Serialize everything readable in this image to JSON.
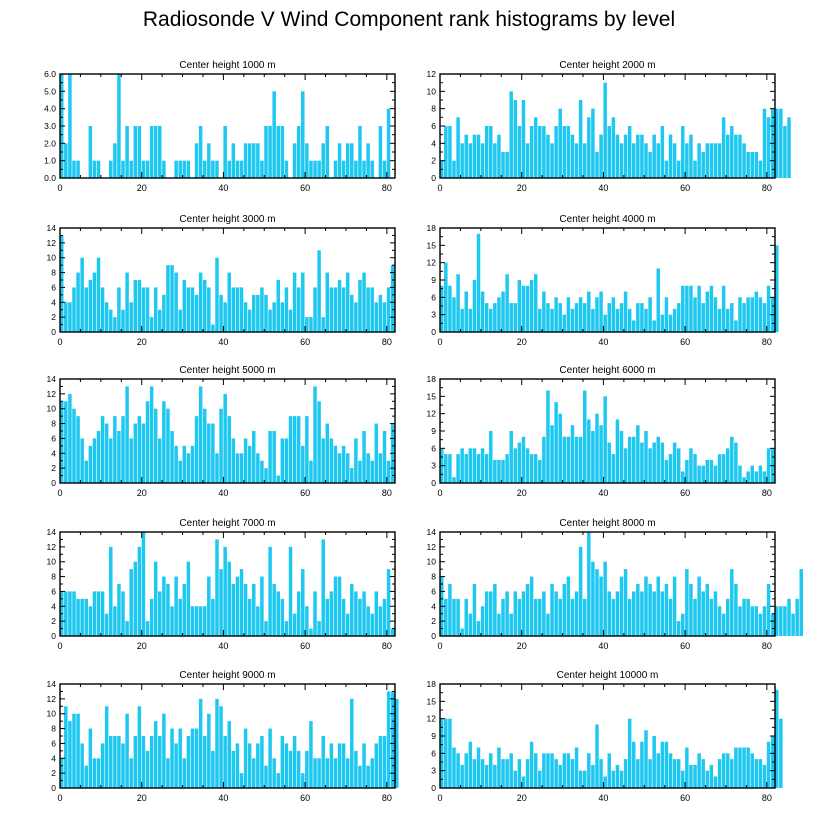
{
  "figure_title": "Radiosonde V Wind Component rank histograms by level",
  "bar_color": "#1ec8f0",
  "chart_data": [
    {
      "type": "bar",
      "title": "Center height 1000 m",
      "xlim": [
        0,
        82
      ],
      "ylim": [
        0,
        6
      ],
      "xticks": [
        0,
        20,
        40,
        60,
        80
      ],
      "yticks": [
        0,
        1,
        2,
        3,
        4,
        5,
        6
      ],
      "ytick_labels": [
        "0.0",
        "1.0",
        "2.0",
        "3.0",
        "4.0",
        "5.0",
        "6.0"
      ],
      "values": [
        6,
        2,
        6,
        1,
        1,
        0,
        0,
        3,
        1,
        1,
        0,
        0,
        1,
        2,
        6,
        1,
        3,
        1,
        3,
        3,
        1,
        1,
        3,
        3,
        3,
        1,
        0,
        0,
        1,
        1,
        1,
        1,
        0,
        2,
        3,
        1,
        2,
        1,
        1,
        0,
        3,
        1,
        2,
        1,
        1,
        2,
        2,
        2,
        2,
        1,
        3,
        3,
        5,
        3,
        3,
        1,
        0,
        2,
        3,
        5,
        2,
        1,
        1,
        1,
        2,
        3,
        0,
        1,
        2,
        1,
        2,
        2,
        1,
        3,
        1,
        2,
        1,
        0,
        3,
        1,
        4
      ]
    },
    {
      "type": "bar",
      "title": "Center height 2000 m",
      "xlim": [
        0,
        82
      ],
      "ylim": [
        0,
        12
      ],
      "xticks": [
        0,
        20,
        40,
        60,
        80
      ],
      "yticks": [
        0,
        2,
        4,
        6,
        8,
        10,
        12
      ],
      "values": [
        2,
        6,
        6,
        2,
        7,
        4,
        5,
        4,
        5,
        5,
        4,
        6,
        6,
        4,
        5,
        3,
        3,
        10,
        9,
        6,
        9,
        4,
        6,
        7,
        6,
        6,
        5,
        4,
        6,
        8,
        6,
        6,
        5,
        4,
        9,
        4,
        7,
        8,
        3,
        5,
        11,
        6,
        7,
        5,
        4,
        5,
        6,
        4,
        5,
        5,
        4,
        3,
        5,
        4,
        6,
        2,
        5,
        4,
        2,
        6,
        4,
        5,
        2,
        4,
        3,
        4,
        4,
        4,
        4,
        7,
        5,
        6,
        5,
        5,
        4,
        3,
        3,
        3,
        2,
        8,
        7,
        8,
        8,
        8,
        6,
        7
      ]
    },
    {
      "type": "bar",
      "title": "Center height 3000 m",
      "xlim": [
        0,
        82
      ],
      "ylim": [
        0,
        14
      ],
      "xticks": [
        0,
        20,
        40,
        60,
        80
      ],
      "yticks": [
        0,
        2,
        4,
        6,
        8,
        10,
        12,
        14
      ],
      "values": [
        13,
        4,
        4,
        6,
        8,
        10,
        6,
        7,
        8,
        10,
        6,
        4,
        3,
        2,
        6,
        3,
        8,
        4,
        7,
        7,
        6,
        6,
        2,
        6,
        3,
        5,
        9,
        9,
        8,
        3,
        7,
        6,
        6,
        5,
        8,
        7,
        6,
        1,
        10,
        5,
        4,
        8,
        6,
        6,
        6,
        4,
        3,
        5,
        5,
        6,
        5,
        3,
        4,
        7,
        4,
        6,
        3,
        8,
        6,
        8,
        2,
        2,
        6,
        11,
        2,
        8,
        6,
        6,
        7,
        6,
        8,
        5,
        4,
        7,
        8,
        6,
        6,
        4,
        5,
        4,
        6,
        9
      ]
    },
    {
      "type": "bar",
      "title": "Center height 4000 m",
      "xlim": [
        0,
        82
      ],
      "ylim": [
        0,
        18
      ],
      "xticks": [
        0,
        20,
        40,
        60,
        80
      ],
      "yticks": [
        0,
        3,
        6,
        9,
        12,
        15,
        18
      ],
      "values": [
        8,
        12,
        8,
        6,
        10,
        4,
        7,
        4,
        9,
        17,
        7,
        5,
        4,
        5,
        6,
        7,
        10,
        5,
        5,
        9,
        8,
        8,
        9,
        10,
        4,
        7,
        5,
        4,
        6,
        5,
        3,
        6,
        4,
        5,
        6,
        5,
        7,
        4,
        6,
        7,
        3,
        5,
        6,
        4,
        5,
        7,
        4,
        2,
        5,
        5,
        4,
        6,
        2,
        11,
        3,
        6,
        3,
        4,
        5,
        8,
        8,
        8,
        6,
        8,
        5,
        7,
        8,
        6,
        4,
        8,
        4,
        5,
        2,
        6,
        5,
        6,
        6,
        7,
        6,
        5,
        8,
        6,
        15
      ]
    },
    {
      "type": "bar",
      "title": "Center height 5000 m",
      "xlim": [
        0,
        82
      ],
      "ylim": [
        0,
        14
      ],
      "xticks": [
        0,
        20,
        40,
        60,
        80
      ],
      "yticks": [
        0,
        2,
        4,
        6,
        8,
        10,
        12,
        14
      ],
      "values": [
        11,
        11,
        12,
        10,
        9,
        6,
        3,
        5,
        6,
        7,
        9,
        8,
        6,
        9,
        7,
        9,
        13,
        6,
        8,
        9,
        8,
        11,
        13,
        10,
        6,
        11,
        10,
        7,
        5,
        3,
        5,
        4,
        5,
        9,
        13,
        10,
        8,
        8,
        4,
        10,
        12,
        9,
        6,
        4,
        4,
        6,
        5,
        7,
        4,
        3,
        2,
        7,
        7,
        1,
        6,
        6,
        9,
        9,
        9,
        5,
        9,
        3,
        13,
        11,
        6,
        8,
        6,
        5,
        4,
        5,
        4,
        2,
        6,
        3,
        7,
        4,
        3,
        8,
        4,
        7,
        3,
        8
      ]
    },
    {
      "type": "bar",
      "title": "Center height 6000 m",
      "xlim": [
        0,
        82
      ],
      "ylim": [
        0,
        18
      ],
      "xticks": [
        0,
        20,
        40,
        60,
        80
      ],
      "yticks": [
        0,
        3,
        6,
        9,
        12,
        15,
        18
      ],
      "values": [
        6,
        5,
        5,
        1,
        5,
        6,
        5,
        6,
        6,
        5,
        6,
        5,
        9,
        4,
        4,
        4,
        5,
        9,
        6,
        7,
        8,
        6,
        5,
        5,
        4,
        8,
        16,
        10,
        14,
        12,
        8,
        8,
        10,
        8,
        8,
        16,
        11,
        9,
        12,
        10,
        15,
        7,
        5,
        11,
        9,
        6,
        8,
        8,
        10,
        7,
        9,
        6,
        7,
        8,
        7,
        4,
        5,
        7,
        6,
        2,
        4,
        6,
        5,
        3,
        3,
        4,
        4,
        3,
        5,
        5,
        6,
        8,
        7,
        3,
        1,
        2,
        3,
        2,
        3,
        2,
        6,
        6
      ]
    },
    {
      "type": "bar",
      "title": "Center height 7000 m",
      "xlim": [
        0,
        82
      ],
      "ylim": [
        0,
        14
      ],
      "xticks": [
        0,
        20,
        40,
        60,
        80
      ],
      "yticks": [
        0,
        2,
        4,
        6,
        8,
        10,
        12,
        14
      ],
      "values": [
        6,
        6,
        6,
        6,
        5,
        5,
        5,
        4,
        6,
        6,
        6,
        3,
        12,
        4,
        7,
        6,
        2,
        9,
        10,
        12,
        14,
        2,
        5,
        10,
        6,
        8,
        7,
        4,
        8,
        5,
        7,
        10,
        4,
        4,
        4,
        4,
        8,
        5,
        13,
        9,
        12,
        10,
        7,
        8,
        9,
        7,
        5,
        7,
        4,
        8,
        2,
        12,
        7,
        6,
        5,
        2,
        12,
        3,
        6,
        9,
        4,
        1,
        6,
        2,
        13,
        5,
        6,
        8,
        8,
        5,
        3,
        7,
        6,
        5,
        6,
        4,
        3,
        6,
        4,
        5,
        9,
        1
      ]
    },
    {
      "type": "bar",
      "title": "Center height 8000 m",
      "xlim": [
        0,
        82
      ],
      "ylim": [
        0,
        14
      ],
      "xticks": [
        0,
        20,
        40,
        60,
        80
      ],
      "yticks": [
        0,
        2,
        4,
        6,
        8,
        10,
        12,
        14
      ],
      "values": [
        8,
        5,
        7,
        5,
        5,
        1,
        5,
        3,
        7,
        2,
        4,
        6,
        6,
        7,
        3,
        5,
        6,
        3,
        6,
        5,
        6,
        7,
        8,
        5,
        5,
        6,
        3,
        7,
        6,
        5,
        7,
        8,
        5,
        6,
        12,
        5,
        14,
        10,
        9,
        8,
        10,
        6,
        5,
        6,
        8,
        9,
        5,
        6,
        7,
        6,
        8,
        7,
        6,
        8,
        6,
        7,
        5,
        8,
        2,
        3,
        9,
        7,
        5,
        8,
        6,
        7,
        5,
        6,
        4,
        3,
        5,
        9,
        7,
        4,
        5,
        5,
        4,
        4,
        3,
        4,
        7,
        3,
        4,
        4,
        4,
        5,
        3,
        5,
        9
      ]
    },
    {
      "type": "bar",
      "title": "Center height 9000 m",
      "xlim": [
        0,
        82
      ],
      "ylim": [
        0,
        14
      ],
      "xticks": [
        0,
        20,
        40,
        60,
        80
      ],
      "yticks": [
        0,
        2,
        4,
        6,
        8,
        10,
        12,
        14
      ],
      "values": [
        4,
        11,
        9,
        10,
        10,
        6,
        3,
        8,
        4,
        4,
        6,
        11,
        7,
        7,
        7,
        6,
        10,
        4,
        7,
        11,
        7,
        5,
        7,
        9,
        7,
        10,
        4,
        8,
        6,
        8,
        4,
        7,
        8,
        8,
        12,
        7,
        10,
        5,
        12,
        11,
        7,
        9,
        5,
        6,
        2,
        8,
        6,
        4,
        6,
        7,
        3,
        8,
        4,
        2,
        7,
        6,
        5,
        7,
        5,
        2,
        5,
        9,
        4,
        4,
        7,
        4,
        6,
        4,
        6,
        6,
        4,
        12,
        5,
        3,
        6,
        3,
        4,
        6,
        7,
        7,
        13,
        13,
        12
      ]
    },
    {
      "type": "bar",
      "title": "Center height 10000 m",
      "xlim": [
        0,
        82
      ],
      "ylim": [
        0,
        18
      ],
      "xticks": [
        0,
        20,
        40,
        60,
        80
      ],
      "yticks": [
        0,
        3,
        6,
        9,
        12,
        15,
        18
      ],
      "values": [
        12,
        12,
        12,
        7,
        6,
        4,
        6,
        8,
        5,
        7,
        5,
        4,
        6,
        4,
        7,
        5,
        5,
        6,
        3,
        5,
        2,
        5,
        8,
        6,
        3,
        6,
        6,
        6,
        5,
        4,
        6,
        6,
        5,
        7,
        3,
        3,
        6,
        4,
        11,
        5,
        2,
        6,
        3,
        4,
        3,
        5,
        12,
        8,
        5,
        8,
        10,
        5,
        9,
        6,
        8,
        8,
        6,
        5,
        5,
        3,
        7,
        4,
        4,
        6,
        5,
        3,
        4,
        2,
        5,
        6,
        6,
        5,
        7,
        7,
        7,
        7,
        6,
        5,
        5,
        4,
        8,
        9,
        17,
        12
      ]
    }
  ]
}
